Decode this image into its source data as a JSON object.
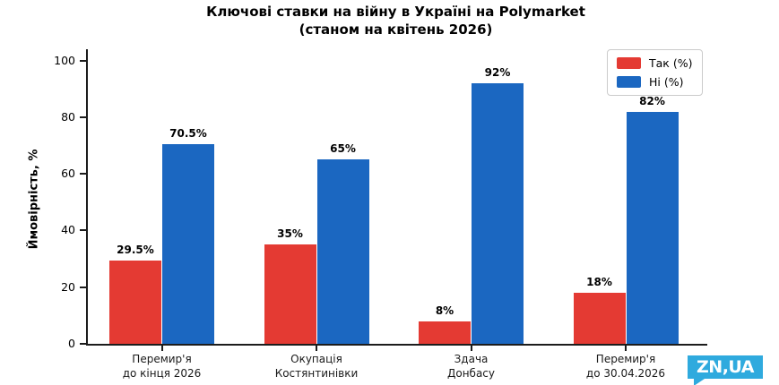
{
  "title": {
    "line1": "Ключові ставки на війну в Україні на Polymarket",
    "line2": "(станом на квітень 2026)"
  },
  "chart_data": {
    "type": "bar",
    "title": "Ключові ставки на війну в Україні на Polymarket (станом на квітень 2026)",
    "xlabel": "",
    "ylabel": "Ймовірність, %",
    "ylim": [
      0,
      104
    ],
    "yticks": [
      0,
      20,
      40,
      60,
      80,
      100
    ],
    "grid": false,
    "legend_position": "upper right",
    "categories": [
      "Перемир'я\nдо кінця 2026",
      "Окупація\nКостянтинівки",
      "Здача\nДонбасу",
      "Перемир'я\nдо 30.04.2026"
    ],
    "series": [
      {
        "name": "Так (%)",
        "color": "#e43a33",
        "values": [
          29.5,
          35,
          8,
          18
        ],
        "labels": [
          "29.5%",
          "35%",
          "8%",
          "18%"
        ]
      },
      {
        "name": "Ні (%)",
        "color": "#1b67c1",
        "values": [
          70.5,
          65,
          92,
          82
        ],
        "labels": [
          "70.5%",
          "65%",
          "92%",
          "82%"
        ]
      }
    ],
    "axis_color": "#1c1c1c"
  },
  "watermark": {
    "text": "ZN,UA",
    "color": "#2faade"
  }
}
